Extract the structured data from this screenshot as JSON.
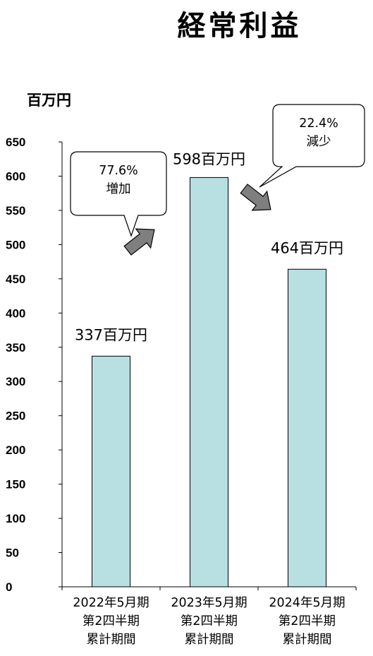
{
  "chart_data": {
    "type": "bar",
    "title": "経常利益",
    "ylabel": "百万円",
    "ylim": [
      0,
      650
    ],
    "yticks": [
      0,
      50,
      100,
      150,
      200,
      250,
      300,
      350,
      400,
      450,
      500,
      550,
      600,
      650
    ],
    "grid": false,
    "legend": "none",
    "bar_color": "#b8dfe2",
    "arrow_color": "#7f7f7f",
    "categories": [
      [
        "2022年5月期",
        "第2四半期",
        "累計期間"
      ],
      [
        "2023年5月期",
        "第2四半期",
        "累計期間"
      ],
      [
        "2024年5月期",
        "第2四半期",
        "累計期間"
      ]
    ],
    "values": [
      337,
      598,
      464
    ],
    "value_labels": [
      "337百万円",
      "598百万円",
      "464百万円"
    ],
    "annotations": [
      {
        "lines": [
          "77.6%",
          "増加"
        ]
      },
      {
        "lines": [
          "22.4%",
          "減少"
        ]
      }
    ]
  }
}
